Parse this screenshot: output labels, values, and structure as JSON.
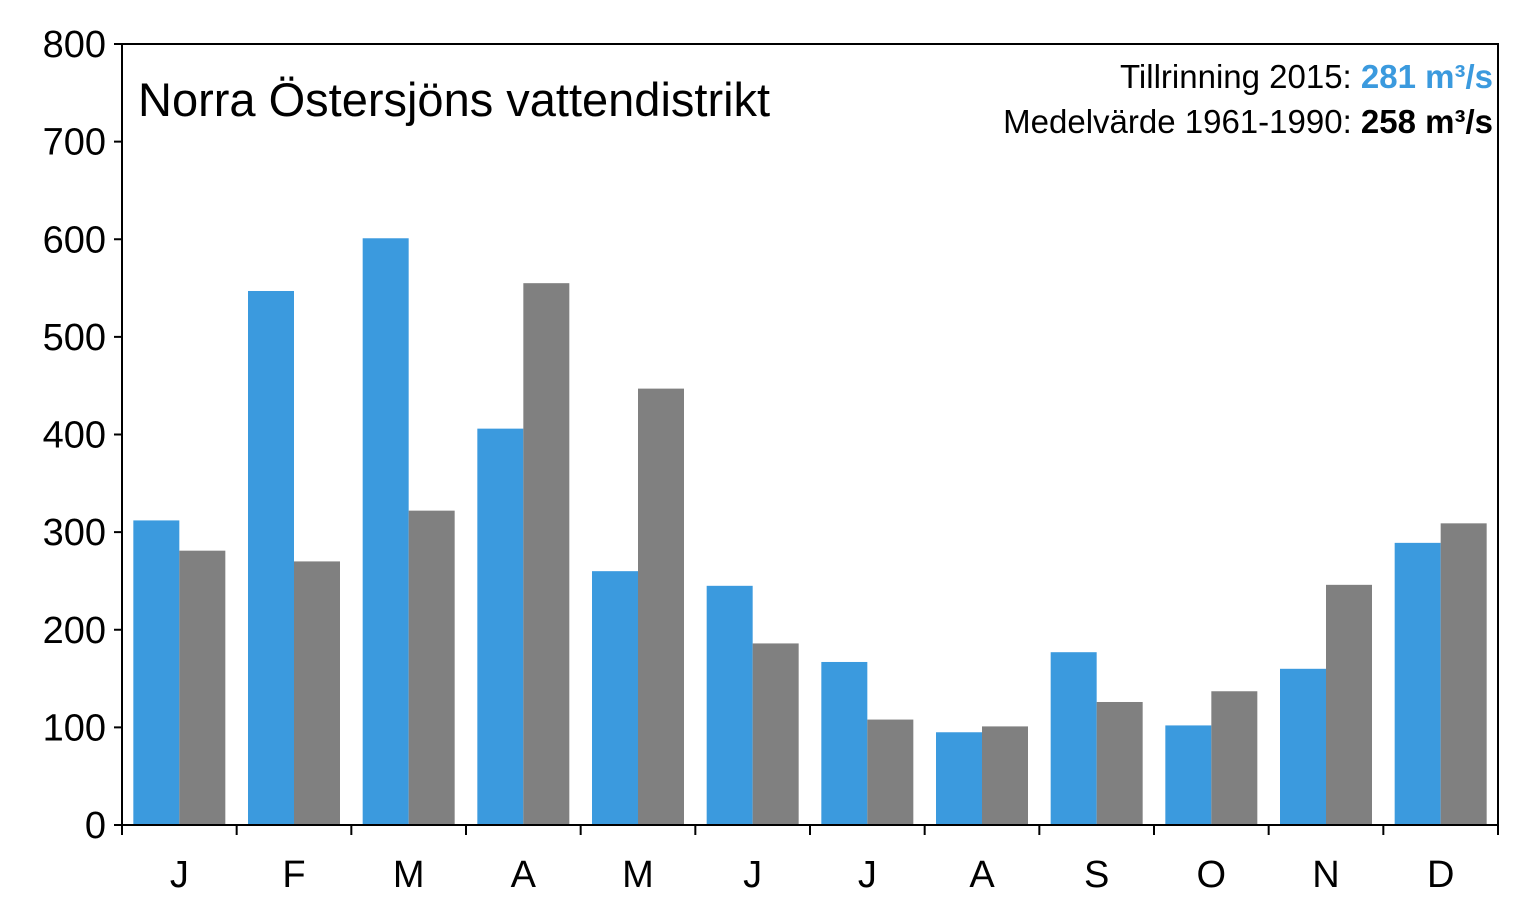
{
  "chart_data": {
    "type": "bar",
    "title": "Norra Östersjöns vattendistrikt",
    "info": {
      "line1_label": "Tillrinning 2015: ",
      "line1_value": "281 m³/s",
      "line2_label": "Medelvärde 1961-1990: ",
      "line2_value": "258 m³/s"
    },
    "categories": [
      "J",
      "F",
      "M",
      "A",
      "M",
      "J",
      "J",
      "A",
      "S",
      "O",
      "N",
      "D"
    ],
    "series": [
      {
        "color": "#3b9ade",
        "values": [
          312,
          547,
          601,
          406,
          260,
          245,
          167,
          95,
          177,
          102,
          160,
          289
        ]
      },
      {
        "color": "#808080",
        "values": [
          281,
          270,
          322,
          555,
          447,
          186,
          108,
          101,
          126,
          137,
          246,
          309
        ]
      }
    ],
    "ylim": [
      0,
      800
    ],
    "yticks": [
      0,
      100,
      200,
      300,
      400,
      500,
      600,
      700,
      800
    ],
    "grid": false,
    "legend": "none"
  }
}
